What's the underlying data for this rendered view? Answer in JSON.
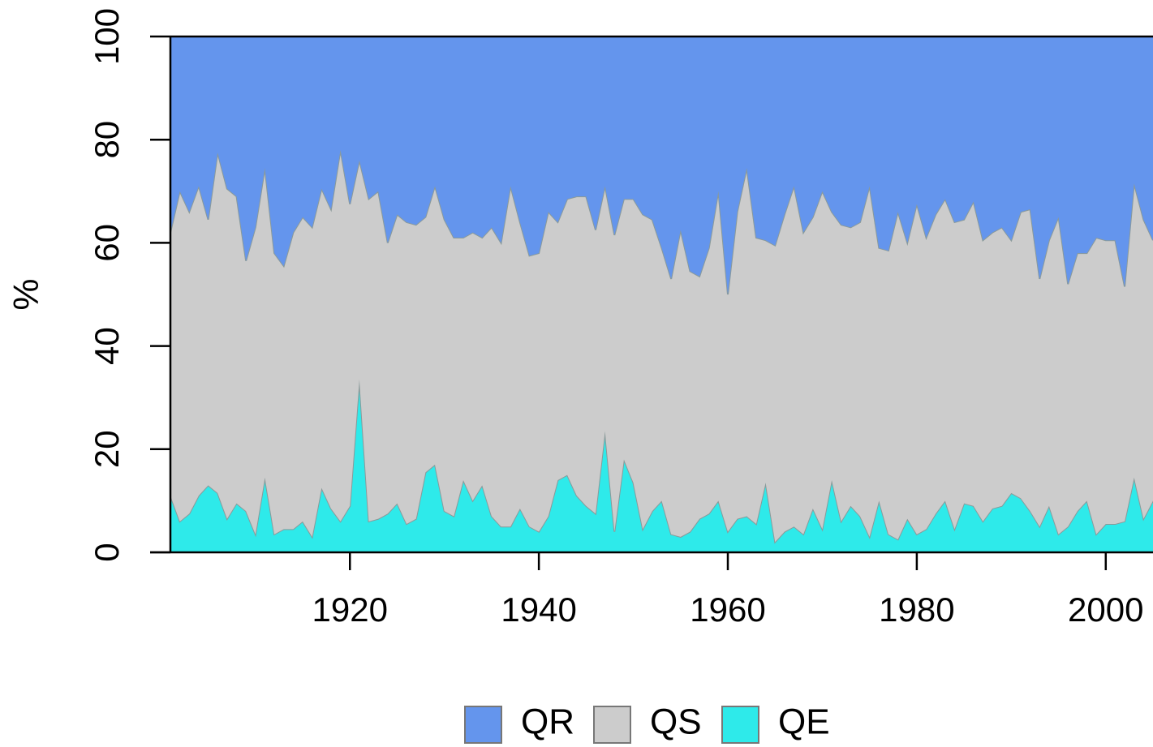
{
  "chart_data": {
    "type": "stacked_area",
    "y_label": "%",
    "x": [
      1901,
      1902,
      1903,
      1904,
      1905,
      1906,
      1907,
      1908,
      1909,
      1910,
      1911,
      1912,
      1913,
      1914,
      1915,
      1916,
      1917,
      1918,
      1919,
      1920,
      1921,
      1922,
      1923,
      1924,
      1925,
      1926,
      1927,
      1928,
      1929,
      1930,
      1931,
      1932,
      1933,
      1934,
      1935,
      1936,
      1937,
      1938,
      1939,
      1940,
      1941,
      1942,
      1943,
      1944,
      1945,
      1946,
      1947,
      1948,
      1949,
      1950,
      1951,
      1952,
      1953,
      1954,
      1955,
      1956,
      1957,
      1958,
      1959,
      1960,
      1961,
      1962,
      1963,
      1964,
      1965,
      1966,
      1967,
      1968,
      1969,
      1970,
      1971,
      1972,
      1973,
      1974,
      1975,
      1976,
      1977,
      1978,
      1979,
      1980,
      1981,
      1982,
      1983,
      1984,
      1985,
      1986,
      1987,
      1988,
      1989,
      1990,
      1991,
      1992,
      1993,
      1994,
      1995,
      1996,
      1997,
      1998,
      1999,
      2000,
      2001,
      2002,
      2003,
      2004,
      2005
    ],
    "series": [
      {
        "name": "QR",
        "color": "#6495ed",
        "values": [
          38,
          30,
          34,
          29,
          35.5,
          22.5,
          29.5,
          31,
          43.5,
          37,
          25.5,
          42,
          44.5,
          38,
          35,
          37,
          29.5,
          33.5,
          22,
          32.5,
          24,
          31.5,
          30,
          40,
          34.5,
          36,
          36.5,
          35,
          29,
          35.5,
          39,
          39,
          38,
          39,
          37,
          40,
          29,
          36,
          42.5,
          42,
          34,
          36,
          31.5,
          31,
          31,
          37.5,
          29,
          38.5,
          31.5,
          31.5,
          34.5,
          35.5,
          41,
          47,
          37.5,
          45.5,
          46.5,
          41,
          30,
          50,
          34,
          25.5,
          39,
          39.5,
          40.5,
          34.5,
          29,
          38,
          35,
          30,
          34,
          36.5,
          37,
          36,
          29,
          41,
          41.5,
          34,
          40,
          32.5,
          39,
          34.5,
          31.5,
          36,
          35.5,
          32,
          39.5,
          38,
          37,
          39.5,
          34,
          33.5,
          47,
          39.5,
          35,
          48,
          42,
          42,
          39,
          39.5,
          39.5,
          48.5,
          28.5,
          35.5,
          39.5
        ]
      },
      {
        "name": "QS",
        "color": "#cccccc",
        "values": [
          51,
          64,
          58.5,
          60,
          51.5,
          66,
          64,
          59.5,
          48.5,
          59.5,
          60,
          54.5,
          51,
          57.5,
          59,
          60,
          58,
          58,
          72,
          58.5,
          42.5,
          62.5,
          63.5,
          52.5,
          56,
          58.5,
          57,
          49.5,
          54,
          56.5,
          54,
          47,
          52,
          48,
          56,
          55,
          66,
          55.5,
          52.5,
          54,
          59,
          50,
          53.5,
          58,
          60,
          55,
          47.5,
          57.5,
          50.5,
          55,
          61,
          56.5,
          49,
          49.5,
          59.5,
          50.5,
          47,
          51.5,
          60,
          46,
          59.5,
          67.5,
          55.5,
          47,
          57.5,
          61.5,
          66,
          58.5,
          56.5,
          65.5,
          52,
          57.5,
          54,
          57,
          68,
          49,
          55,
          63.5,
          53.5,
          64,
          56.5,
          58,
          58.5,
          59.5,
          55,
          59,
          54.5,
          53.5,
          54,
          49,
          55.5,
          58.5,
          48,
          51.5,
          61.5,
          47,
          50,
          48,
          57.5,
          55,
          55,
          45.5,
          57,
          58,
          50.5
        ]
      },
      {
        "name": "QE",
        "color": "#2eeaea",
        "values": [
          11,
          6,
          7.5,
          11,
          13,
          11.5,
          6.5,
          9.5,
          8,
          3.5,
          14.5,
          3.5,
          4.5,
          4.5,
          6,
          3,
          12.5,
          8.5,
          6,
          9,
          33.5,
          6,
          6.5,
          7.5,
          9.5,
          5.5,
          6.5,
          15.5,
          17,
          8,
          7,
          14,
          10,
          13,
          7,
          5,
          5,
          8.5,
          5,
          4,
          7,
          14,
          15,
          11,
          9,
          7.5,
          23.5,
          4,
          18,
          13.5,
          4.5,
          8,
          10,
          3.5,
          3,
          4,
          6.5,
          7.5,
          10,
          4,
          6.5,
          7,
          5.5,
          13.5,
          2,
          4,
          5,
          3.5,
          8.5,
          4.5,
          14,
          6,
          9,
          7,
          3,
          10,
          3.5,
          2.5,
          6.5,
          3.5,
          4.5,
          7.5,
          10,
          4.5,
          9.5,
          9,
          6,
          8.5,
          9,
          11.5,
          10.5,
          8,
          5,
          9,
          3.5,
          5,
          8,
          10,
          3.5,
          5.5,
          5.5,
          6,
          14.5,
          6.5,
          10
        ]
      }
    ],
    "xlim": [
      1901,
      2005
    ],
    "xticks": [
      1920,
      1940,
      1960,
      1980,
      2000
    ],
    "ylim": [
      0,
      100
    ],
    "yticks": [
      0,
      20,
      40,
      60,
      80,
      100
    ],
    "legend": "bottom"
  }
}
